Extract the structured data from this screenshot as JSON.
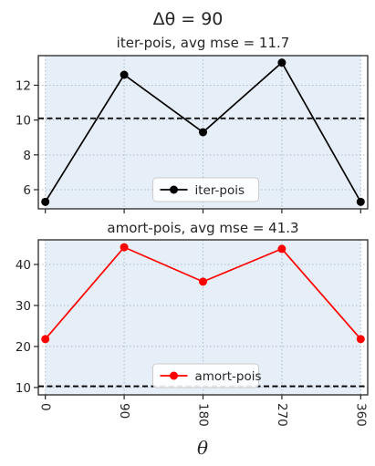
{
  "figure": {
    "suptitle": "Δθ = 90",
    "xlabel": "θ"
  },
  "colors": {
    "axes_bg": "#e6eef7",
    "grid": "#b0bccb",
    "spine": "#262626",
    "baseline": "#000000"
  },
  "chart_data": [
    {
      "type": "line",
      "title": "iter-pois, avg mse = 11.7",
      "x": [
        0,
        90,
        180,
        270,
        360
      ],
      "series": [
        {
          "name": "iter-pois",
          "values": [
            5.3,
            12.6,
            9.3,
            13.3,
            5.3
          ],
          "color": "#000000"
        }
      ],
      "baseline": 10.1,
      "xlim": [
        -8,
        368
      ],
      "ylim": [
        4.9,
        13.7
      ],
      "yticks": [
        6,
        8,
        10,
        12
      ],
      "xticks": [
        0,
        90,
        180,
        270,
        360
      ],
      "show_xtick_labels": false,
      "grid": true,
      "legend": "lower center"
    },
    {
      "type": "line",
      "title": "amort-pois, avg mse = 41.3",
      "x": [
        0,
        90,
        180,
        270,
        360
      ],
      "series": [
        {
          "name": "amort-pois",
          "values": [
            21.8,
            44.2,
            35.8,
            43.8,
            21.8
          ],
          "color": "#ff0000"
        }
      ],
      "baseline": 10.3,
      "xlim": [
        -8,
        368
      ],
      "ylim": [
        8.2,
        46.0
      ],
      "yticks": [
        10,
        20,
        30,
        40
      ],
      "xticks": [
        0,
        90,
        180,
        270,
        360
      ],
      "xticklabels": [
        "0",
        "90",
        "180",
        "270",
        "360"
      ],
      "show_xtick_labels": true,
      "grid": true,
      "legend": "lower center"
    }
  ]
}
